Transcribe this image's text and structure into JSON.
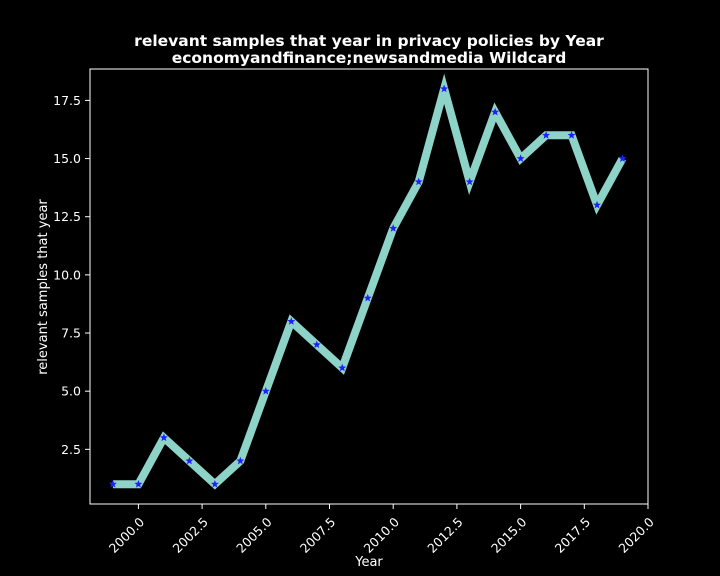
{
  "chart_data": {
    "type": "line",
    "title_lines": [
      "relevant samples that year in privacy policies by Year",
      "economyandfinance;newsandmedia Wildcard"
    ],
    "xlabel": "Year",
    "ylabel": "relevant samples that year",
    "xlim": [
      1998.1,
      2020.0
    ],
    "ylim": [
      0.15,
      18.85
    ],
    "x_ticks": [
      2000.0,
      2002.5,
      2005.0,
      2007.5,
      2010.0,
      2012.5,
      2015.0,
      2017.5,
      2020.0
    ],
    "x_tick_labels": [
      "2000.0",
      "2002.5",
      "2005.0",
      "2007.5",
      "2010.0",
      "2012.5",
      "2015.0",
      "2017.5",
      "2020.0"
    ],
    "y_ticks": [
      2.5,
      5.0,
      7.5,
      10.0,
      12.5,
      15.0,
      17.5
    ],
    "y_tick_labels": [
      "2.5",
      "5.0",
      "7.5",
      "10.0",
      "12.5",
      "15.0",
      "17.5"
    ],
    "grid": false,
    "line_color": "#8dd3c7",
    "marker_color": "#1f1fff",
    "background": "#000000",
    "series": [
      {
        "x": [
          1999,
          2000,
          2001,
          2002,
          2003,
          2004,
          2005,
          2006,
          2007,
          2008,
          2009,
          2010,
          2011,
          2012,
          2013,
          2014,
          2015,
          2016,
          2017,
          2018,
          2019
        ],
        "y": [
          1,
          1,
          3,
          2,
          1,
          2,
          5,
          8,
          7,
          6,
          9,
          12,
          14,
          18,
          14,
          17,
          15,
          16,
          16,
          13,
          15
        ]
      }
    ]
  }
}
